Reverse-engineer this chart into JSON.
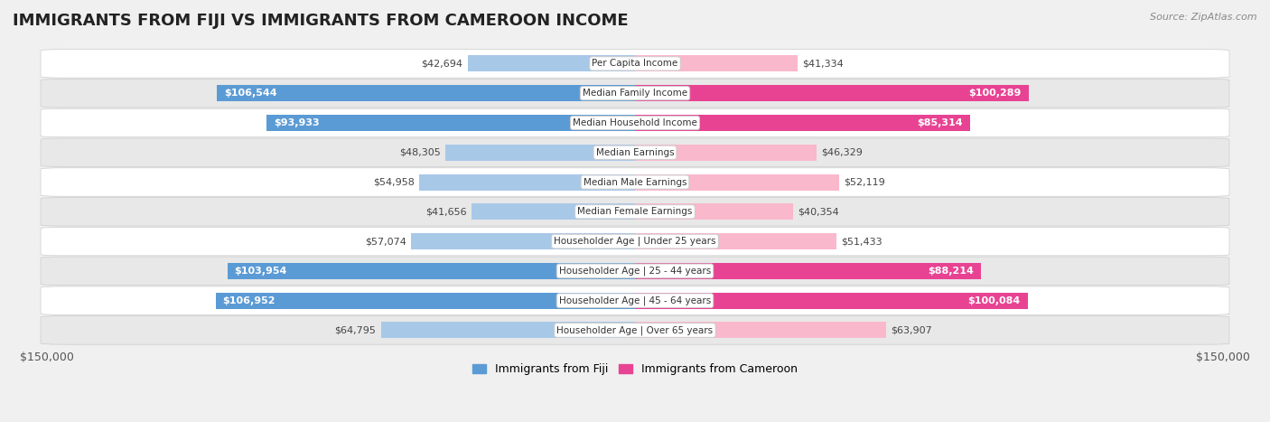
{
  "title": "IMMIGRANTS FROM FIJI VS IMMIGRANTS FROM CAMEROON INCOME",
  "source": "Source: ZipAtlas.com",
  "categories": [
    "Per Capita Income",
    "Median Family Income",
    "Median Household Income",
    "Median Earnings",
    "Median Male Earnings",
    "Median Female Earnings",
    "Householder Age | Under 25 years",
    "Householder Age | 25 - 44 years",
    "Householder Age | 45 - 64 years",
    "Householder Age | Over 65 years"
  ],
  "fiji_values": [
    42694,
    106544,
    93933,
    48305,
    54958,
    41656,
    57074,
    103954,
    106952,
    64795
  ],
  "cameroon_values": [
    41334,
    100289,
    85314,
    46329,
    52119,
    40354,
    51433,
    88214,
    100084,
    63907
  ],
  "fiji_labels": [
    "$42,694",
    "$106,544",
    "$93,933",
    "$48,305",
    "$54,958",
    "$41,656",
    "$57,074",
    "$103,954",
    "$106,952",
    "$64,795"
  ],
  "cameroon_labels": [
    "$41,334",
    "$100,289",
    "$85,314",
    "$46,329",
    "$52,119",
    "$40,354",
    "$51,433",
    "$88,214",
    "$100,084",
    "$63,907"
  ],
  "fiji_color_light": "#a8c8e8",
  "fiji_color_dark": "#5b9bd5",
  "cameroon_color_light": "#f9b8cc",
  "cameroon_color_dark": "#e84393",
  "max_value": 150000,
  "bar_height": 0.55,
  "background_color": "#f0f0f0",
  "row_bg_light": "#ffffff",
  "row_bg_dark": "#e8e8e8",
  "legend_fiji": "Immigrants from Fiji",
  "legend_cameroon": "Immigrants from Cameroon",
  "fiji_label_threshold": 75000,
  "cameroon_label_threshold": 75000,
  "title_fontsize": 13,
  "label_fontsize": 8,
  "cat_fontsize": 7.5,
  "axis_fontsize": 9
}
